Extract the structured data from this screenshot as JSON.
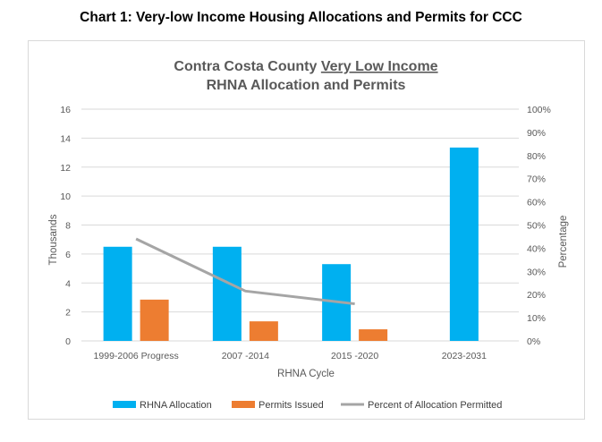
{
  "page_caption": "Chart 1: Very-low Income Housing Allocations and Permits for CCC",
  "chart_data": {
    "type": "bar",
    "title_prefix": "Contra Costa County ",
    "title_underlined": "Very Low Income",
    "title_line2": "RHNA Allocation and Permits",
    "categories": [
      "1999-2006 Progress",
      "2007 -2014",
      "2015 -2020",
      "2023-2031"
    ],
    "series": [
      {
        "name": "RHNA Allocation",
        "type": "bar",
        "color": "#00b0f0",
        "values": [
          6.5,
          6.5,
          5.3,
          13.35
        ]
      },
      {
        "name": "Permits Issued",
        "type": "bar",
        "color": "#ed7d31",
        "values": [
          2.85,
          1.35,
          0.8,
          null
        ]
      },
      {
        "name": "Percent of Allocation Permitted",
        "type": "line",
        "axis": "right",
        "color": "#a5a5a5",
        "values": [
          44,
          21.5,
          16,
          null
        ]
      }
    ],
    "xlabel": "RHNA Cycle",
    "ylabel": "Thousands",
    "y2label": "Percentage",
    "ylim": [
      0,
      16
    ],
    "yticks": [
      "0",
      "2",
      "4",
      "6",
      "8",
      "10",
      "12",
      "14",
      "16"
    ],
    "y2lim": [
      0,
      100
    ],
    "y2ticks": [
      "0%",
      "10%",
      "20%",
      "30%",
      "40%",
      "50%",
      "60%",
      "70%",
      "80%",
      "90%",
      "100%"
    ],
    "grid": true,
    "legend_position": "bottom"
  }
}
